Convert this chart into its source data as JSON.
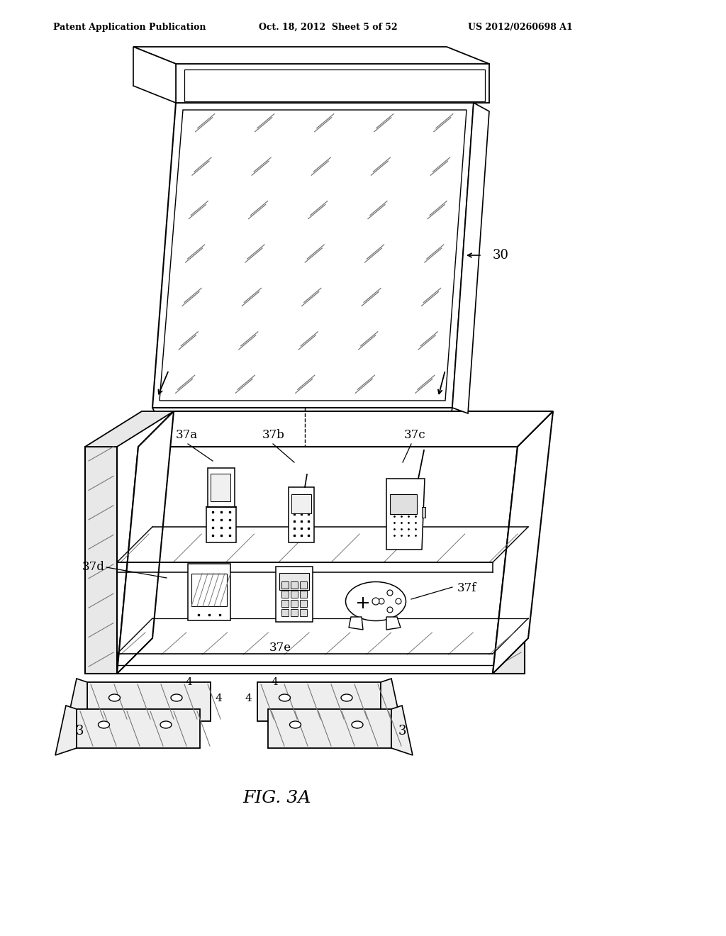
{
  "bg_color": "#ffffff",
  "header_left": "Patent Application Publication",
  "header_mid": "Oct. 18, 2012  Sheet 5 of 52",
  "header_right": "US 2012/0260698 A1",
  "fig_caption": "FIG. 3A",
  "label_30": "30",
  "label_37a": "37a",
  "label_37b": "37b",
  "label_37c": "37c",
  "label_37d": "37d",
  "label_37e": "37e",
  "label_37f": "37f",
  "line_color": "#000000",
  "hatch_color": "#777777"
}
